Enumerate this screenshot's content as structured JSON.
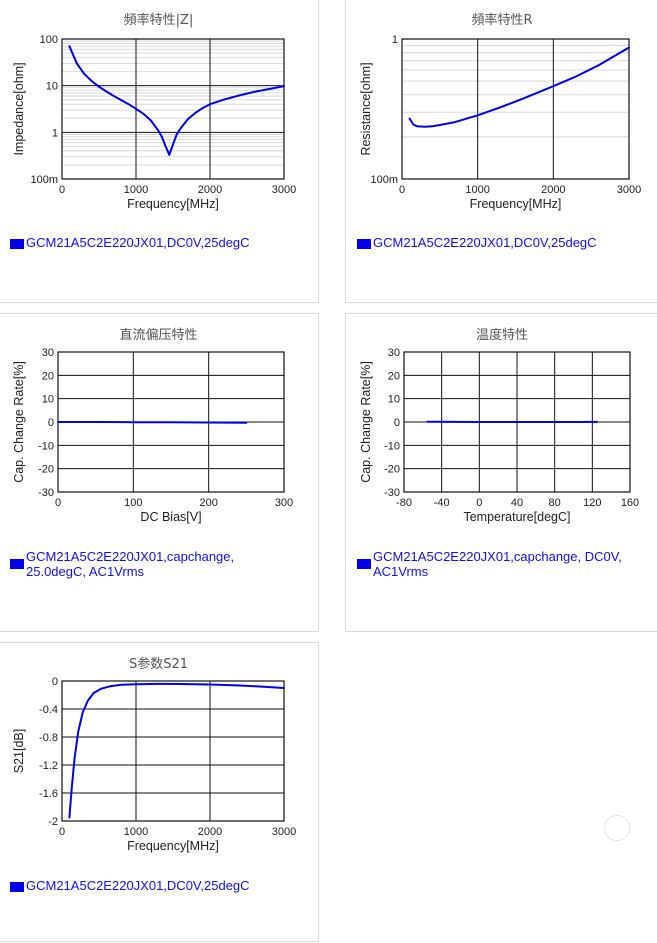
{
  "chart_data": [
    {
      "id": "c1",
      "type": "line",
      "title": "頻率特性|Z|",
      "xlabel": "Frequency[MHz]",
      "ylabel": "Impedance[ohm]",
      "x_scale": "linear",
      "y_scale": "log",
      "xlim": [
        0,
        3000
      ],
      "ylim": [
        0.1,
        100
      ],
      "xticks": [
        0,
        1000,
        2000,
        3000
      ],
      "xtick_labels": [
        "0",
        "1000",
        "2000",
        "3000"
      ],
      "yticks": [
        0.1,
        1,
        10,
        100
      ],
      "ytick_labels": [
        "100m",
        "1",
        "10",
        "100"
      ],
      "grid": true,
      "color": "#0000ee",
      "legend": "GCM21A5C2E220JX01,DC0V,25degC",
      "series": [
        {
          "x": [
            100,
            200,
            300,
            400,
            500,
            600,
            700,
            800,
            900,
            1000,
            1100,
            1200,
            1300,
            1350,
            1400,
            1450,
            1500,
            1550,
            1600,
            1700,
            1800,
            1900,
            2000,
            2200,
            2400,
            2600,
            2800,
            3000
          ],
          "y": [
            70,
            30,
            18,
            12.5,
            9.5,
            7.5,
            6.0,
            4.9,
            4.0,
            3.2,
            2.5,
            1.8,
            1.1,
            0.8,
            0.5,
            0.33,
            0.55,
            0.9,
            1.2,
            1.9,
            2.6,
            3.3,
            4.0,
            5.1,
            6.2,
            7.4,
            8.5,
            9.8
          ]
        }
      ]
    },
    {
      "id": "c2",
      "type": "line",
      "title": "頻率特性R",
      "xlabel": "Frequency[MHz]",
      "ylabel": "Resistance[ohm]",
      "x_scale": "linear",
      "y_scale": "log",
      "xlim": [
        0,
        3000
      ],
      "ylim": [
        0.1,
        1
      ],
      "xticks": [
        0,
        1000,
        2000,
        3000
      ],
      "xtick_labels": [
        "0",
        "1000",
        "2000",
        "3000"
      ],
      "yticks": [
        0.1,
        1
      ],
      "ytick_labels": [
        "100m",
        "1"
      ],
      "grid": true,
      "color": "#0000ee",
      "legend": "GCM21A5C2E220JX01,DC0V,25degC",
      "series": [
        {
          "x": [
            100,
            150,
            200,
            300,
            400,
            500,
            700,
            1000,
            1300,
            1600,
            2000,
            2300,
            2600,
            3000
          ],
          "y": [
            0.27,
            0.245,
            0.238,
            0.236,
            0.238,
            0.243,
            0.255,
            0.285,
            0.325,
            0.375,
            0.46,
            0.54,
            0.65,
            0.87
          ]
        }
      ]
    },
    {
      "id": "c3",
      "type": "line",
      "title": "直流偏压特性",
      "xlabel": "DC Bias[V]",
      "ylabel": "Cap. Change Rate[%]",
      "x_scale": "linear",
      "y_scale": "linear",
      "xlim": [
        0,
        300
      ],
      "ylim": [
        -30,
        30
      ],
      "xticks": [
        0,
        100,
        200,
        300
      ],
      "xtick_labels": [
        "0",
        "100",
        "200",
        "300"
      ],
      "yticks": [
        -30,
        -20,
        -10,
        0,
        10,
        20,
        30
      ],
      "ytick_labels": [
        "-30",
        "-20",
        "-10",
        "0",
        "10",
        "20",
        "30"
      ],
      "grid": true,
      "color": "#0000ee",
      "legend": "GCM21A5C2E220JX01,capchange, 25.0degC, AC1Vrms",
      "series": [
        {
          "x": [
            0,
            50,
            100,
            150,
            200,
            250
          ],
          "y": [
            0,
            0,
            -0.1,
            -0.15,
            -0.2,
            -0.3
          ]
        }
      ]
    },
    {
      "id": "c4",
      "type": "line",
      "title": "温度特性",
      "xlabel": "Temperature[degC]",
      "ylabel": "Cap. Change Rate[%]",
      "x_scale": "linear",
      "y_scale": "linear",
      "xlim": [
        -80,
        160
      ],
      "ylim": [
        -30,
        30
      ],
      "xticks": [
        -80,
        -40,
        0,
        40,
        80,
        120,
        160
      ],
      "xtick_labels": [
        "-80",
        "-40",
        "0",
        "40",
        "80",
        "120",
        "160"
      ],
      "yticks": [
        -30,
        -20,
        -10,
        0,
        10,
        20,
        30
      ],
      "ytick_labels": [
        "-30",
        "-20",
        "-10",
        "0",
        "10",
        "20",
        "30"
      ],
      "grid": true,
      "color": "#0000ee",
      "legend": "GCM21A5C2E220JX01,capchange, DC0V, AC1Vrms",
      "series": [
        {
          "x": [
            -55,
            -25,
            0,
            25,
            50,
            85,
            105,
            125
          ],
          "y": [
            0.1,
            0.05,
            0,
            0,
            0,
            0,
            0,
            0.05
          ]
        }
      ]
    },
    {
      "id": "c5",
      "type": "line",
      "title": "S参数S21",
      "xlabel": "Frequency[MHz]",
      "ylabel": "S21[dB]",
      "x_scale": "linear",
      "y_scale": "linear",
      "xlim": [
        0,
        3000
      ],
      "ylim": [
        -2,
        0
      ],
      "xticks": [
        0,
        1000,
        2000,
        3000
      ],
      "xtick_labels": [
        "0",
        "1000",
        "2000",
        "3000"
      ],
      "yticks": [
        -2,
        -1.6,
        -1.2,
        -0.8,
        -0.4,
        0
      ],
      "ytick_labels": [
        "-2",
        "-1.6",
        "-1.2",
        "-0.8",
        "-0.4",
        "0"
      ],
      "grid": true,
      "color": "#0000ee",
      "legend": "GCM21A5C2E220JX01,DC0V,25degC",
      "series": [
        {
          "x": [
            100,
            130,
            170,
            220,
            280,
            350,
            430,
            530,
            650,
            800,
            1000,
            1300,
            1600,
            2000,
            2400,
            2700,
            3000
          ],
          "y": [
            -1.95,
            -1.55,
            -1.1,
            -0.72,
            -0.45,
            -0.28,
            -0.17,
            -0.11,
            -0.075,
            -0.055,
            -0.045,
            -0.042,
            -0.043,
            -0.05,
            -0.065,
            -0.08,
            -0.1
          ]
        }
      ]
    }
  ]
}
